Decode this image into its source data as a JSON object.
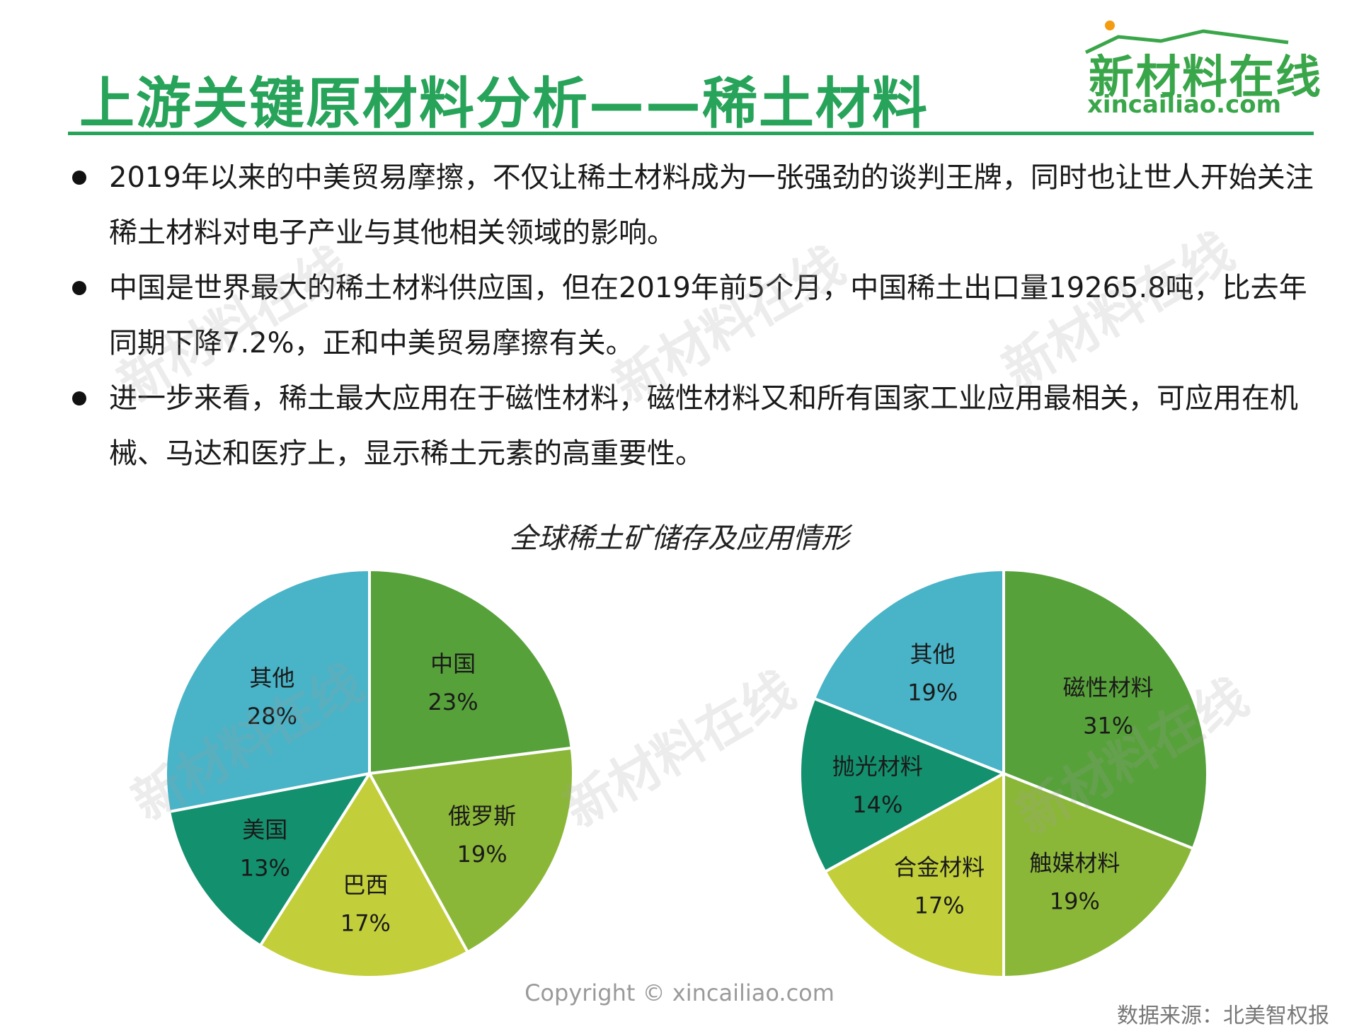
{
  "title": "上游关键原材料分析——稀土材料",
  "logo": {
    "cn": "新材料在线",
    "en": "xincailiao.com"
  },
  "bullets": [
    "2019年以来的中美贸易摩擦，不仅让稀土材料成为一张强劲的谈判王牌，同时也让世人开始关注稀土材料对电子产业与其他相关领域的影响。",
    "中国是世界最大的稀土材料供应国，但在2019年前5个月，中国稀土出口量19265.8吨，比去年同期下降7.2%，正和中美贸易摩擦有关。",
    "进一步来看，稀土最大应用在于磁性材料，磁性材料又和所有国家工业应用最相关，可应用在机械、马达和医疗上，显示稀土元素的高重要性。"
  ],
  "chart_title": "全球稀土矿储存及应用情形",
  "chart_data": [
    {
      "type": "pie",
      "slices": [
        {
          "label": "中国",
          "value": 23,
          "pct": "23%",
          "color": "#57a13a"
        },
        {
          "label": "俄罗斯",
          "value": 19,
          "pct": "19%",
          "color": "#8bb738"
        },
        {
          "label": "巴西",
          "value": 17,
          "pct": "17%",
          "color": "#c2cf3a"
        },
        {
          "label": "美国",
          "value": 13,
          "pct": "13%",
          "color": "#13906e"
        },
        {
          "label": "其他",
          "value": 28,
          "pct": "28%",
          "color": "#49b3c7"
        }
      ]
    },
    {
      "type": "pie",
      "slices": [
        {
          "label": "磁性材料",
          "value": 31,
          "pct": "31%",
          "color": "#57a13a"
        },
        {
          "label": "触媒材料",
          "value": 19,
          "pct": "19%",
          "color": "#8bb738"
        },
        {
          "label": "合金材料",
          "value": 17,
          "pct": "17%",
          "color": "#c2cf3a"
        },
        {
          "label": "抛光材料",
          "value": 14,
          "pct": "14%",
          "color": "#13906e"
        },
        {
          "label": "其他",
          "value": 19,
          "pct": "19%",
          "color": "#49b3c7"
        }
      ]
    }
  ],
  "copyright": "Copyright © xincailiao.com",
  "source": "数据来源：北美智权报"
}
